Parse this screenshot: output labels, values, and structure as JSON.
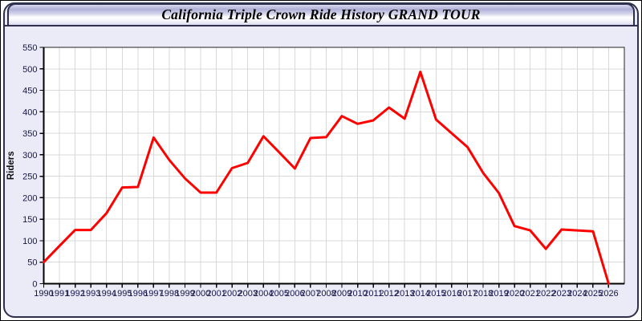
{
  "window": {
    "title": "California Triple Crown Ride History GRAND TOUR"
  },
  "chart_data": {
    "type": "line",
    "title": "California Triple Crown Ride History GRAND TOUR",
    "xlabel": "",
    "ylabel": "Riders",
    "x": [
      1990,
      1991,
      1992,
      1993,
      1994,
      1995,
      1996,
      1997,
      1998,
      1999,
      2000,
      2001,
      2002,
      2003,
      2004,
      2005,
      2006,
      2007,
      2008,
      2009,
      2010,
      2011,
      2012,
      2013,
      2014,
      2015,
      2016,
      2017,
      2018,
      2019,
      2020,
      2021,
      2022,
      2023,
      2024,
      2025,
      2026
    ],
    "series": [
      {
        "name": "Riders",
        "color": "#ff0000",
        "values": [
          50,
          88,
          125,
          125,
          164,
          224,
          225,
          340,
          288,
          245,
          212,
          212,
          269,
          281,
          343,
          306,
          268,
          339,
          341,
          390,
          372,
          380,
          410,
          384,
          493,
          382,
          350,
          318,
          258,
          211,
          134,
          124,
          81,
          126,
          124,
          122,
          0
        ]
      }
    ],
    "xlim": [
      1990,
      2027
    ],
    "ylim": [
      0,
      550
    ],
    "ytick_step": 50,
    "yticks": [
      "0",
      "50",
      "100",
      "150",
      "200",
      "250",
      "300",
      "350",
      "400",
      "450",
      "500",
      "550"
    ],
    "grid": true,
    "legend": false
  },
  "colors": {
    "line": "#ff0000",
    "frame_background": "#ebebf8",
    "plot_background": "#ffffff",
    "grid": "#d9d9d9",
    "axis": "#000000",
    "tick_label": "#15154a",
    "frame_border": "#2e2e4d"
  }
}
